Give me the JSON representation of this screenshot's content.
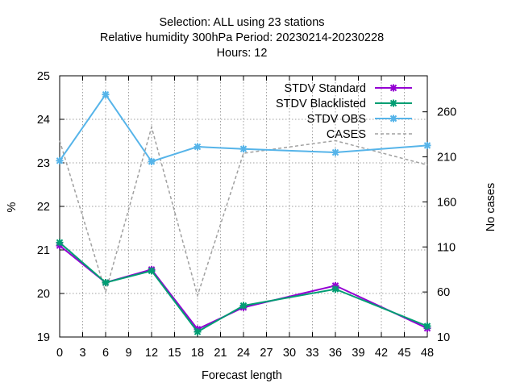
{
  "chart_data": {
    "type": "line",
    "title_lines": [
      "Selection: ALL using    23 stations",
      "Relative humidity 300hPa   Period: 20230214-20230228",
      "Hours:  12"
    ],
    "xlabel": "Forecast length",
    "ylabel": "%",
    "y2label": "No cases",
    "xlim": [
      0,
      48
    ],
    "ylim": [
      19,
      25
    ],
    "y2lim": [
      10,
      300
    ],
    "xticks": [
      "0",
      "3",
      "6",
      "9",
      "12",
      "15",
      "18",
      "21",
      "24",
      "27",
      "30",
      "33",
      "36",
      "39",
      "42",
      "45",
      "48"
    ],
    "yticks": [
      "19",
      "20",
      "21",
      "22",
      "23",
      "24",
      "25"
    ],
    "y2ticks": [
      "10",
      "60",
      "110",
      "160",
      "210",
      "260"
    ],
    "grid": true,
    "legend_position": "top-right",
    "series": [
      {
        "name": "STDV Standard",
        "color": "#9400d3",
        "axis": "y1",
        "marker": "x",
        "x": [
          0,
          6,
          12,
          18,
          24,
          36,
          48
        ],
        "y": [
          21.1,
          20.25,
          20.55,
          19.18,
          19.68,
          20.18,
          19.2
        ]
      },
      {
        "name": "STDV Blacklisted",
        "color": "#009e73",
        "axis": "y1",
        "marker": "x",
        "x": [
          0,
          6,
          12,
          18,
          24,
          36,
          48
        ],
        "y": [
          21.17,
          20.25,
          20.52,
          19.12,
          19.72,
          20.1,
          19.25
        ]
      },
      {
        "name": "STDV OBS",
        "color": "#56b4e9",
        "axis": "y1",
        "marker": "x",
        "x": [
          0,
          6,
          12,
          18,
          24,
          36,
          48
        ],
        "y": [
          23.05,
          24.57,
          23.03,
          23.37,
          23.32,
          23.24,
          23.4
        ]
      },
      {
        "name": "CASES",
        "color": "#a0a0a0",
        "axis": "y2",
        "dashed": true,
        "x": [
          0,
          6,
          12,
          18,
          24,
          36,
          48
        ],
        "y": [
          228,
          60,
          243,
          56,
          214,
          228,
          201
        ]
      }
    ]
  }
}
